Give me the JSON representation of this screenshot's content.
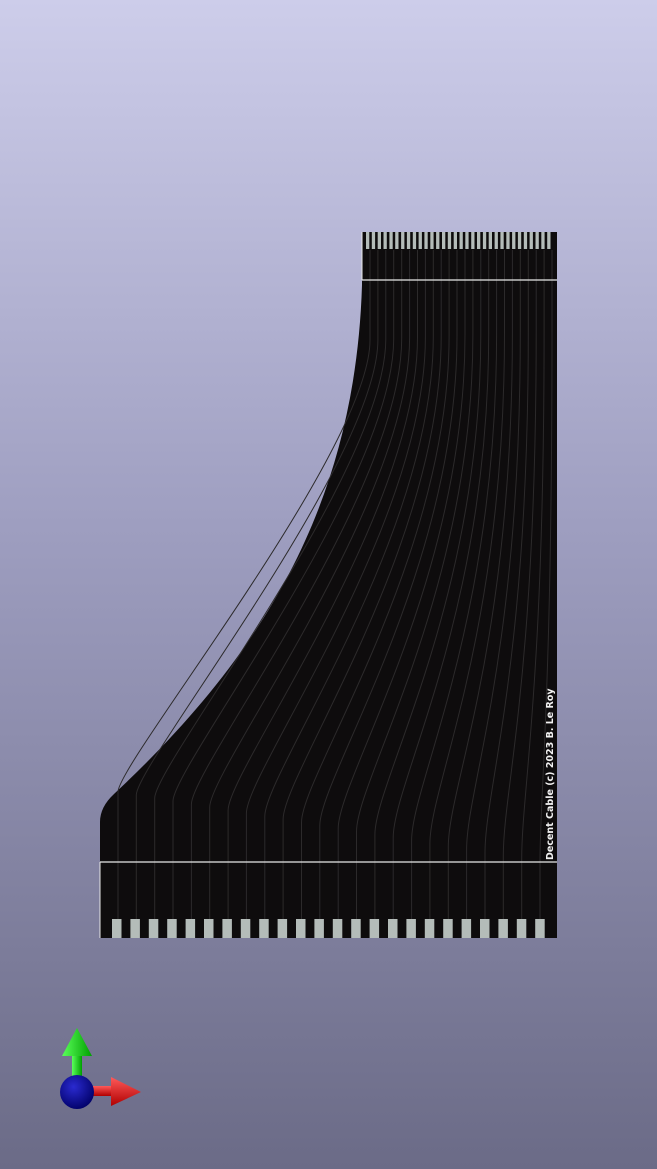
{
  "viewer": {
    "background_top": "#cdcdea",
    "background_bottom": "#6b6b87"
  },
  "board": {
    "silkscreen_text": "Decent Cable (c) 2023 B. Le Roy",
    "substrate_color": "#0e0c0d",
    "trace_color": "#2c2a2b",
    "pad_color": "#b4bcb9",
    "outline_color": "#e8e8e8",
    "top_connector_pins": 32,
    "bottom_connector_pins": 24,
    "trace_count": 24
  },
  "axes_gizmo": {
    "x_axis_color": "#e01010",
    "y_axis_color": "#10d010",
    "z_axis_color": "#0a0a8c",
    "icons": [
      "x-axis-arrow-icon",
      "y-axis-arrow-icon",
      "z-axis-dot-icon"
    ]
  }
}
